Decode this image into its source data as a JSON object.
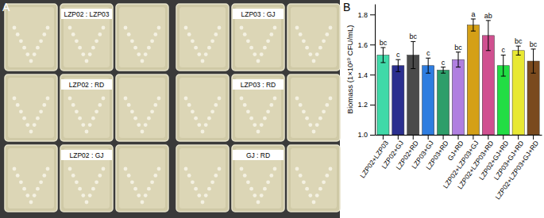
{
  "panel_a": {
    "label": "A",
    "plates": [
      "LZP02 : LZP03",
      "LZP03 : GJ",
      "LZP02 : RD",
      "LZP03 : RD",
      "LZP02 : GJ",
      "GJ : RD"
    ]
  },
  "chart_data": {
    "type": "bar",
    "annotations": [
      "B"
    ],
    "y_label": "Biomass (1×10¹⁰ CFU/mL)",
    "categories": [
      "LZP02+LZP03",
      "LZP02+GJ",
      "LZP02+RD",
      "LZP03+GJ",
      "LZP03+RD",
      "GJ+RD",
      "LZP02+LZP03+GJ",
      "LZP02+LZP03+RD",
      "LZP02+GJ+RD",
      "LZP03+GJ+RD",
      "LZP02+LZP03+GJ+RD"
    ],
    "values": [
      1.53,
      1.46,
      1.53,
      1.46,
      1.43,
      1.5,
      1.73,
      1.66,
      1.46,
      1.56,
      1.49
    ],
    "errors": [
      0.05,
      0.04,
      0.09,
      0.05,
      0.02,
      0.05,
      0.04,
      0.1,
      0.07,
      0.03,
      0.08
    ],
    "significance": [
      "bc",
      "c",
      "bc",
      "c",
      "c",
      "bc",
      "a",
      "ab",
      "c",
      "bc",
      "bc"
    ],
    "colors": [
      "#40d9a8",
      "#2b2f8f",
      "#4a4a4a",
      "#2e7de0",
      "#2e9e6a",
      "#b07fe0",
      "#d4a017",
      "#d05090",
      "#22dd44",
      "#e8e833",
      "#7a4a1e"
    ],
    "ylim": [
      1,
      1.87
    ],
    "yticks": [
      {
        "value": 1,
        "label": "1.0"
      },
      1.2,
      1.4,
      1.6,
      1.8
    ],
    "grid": false
  }
}
